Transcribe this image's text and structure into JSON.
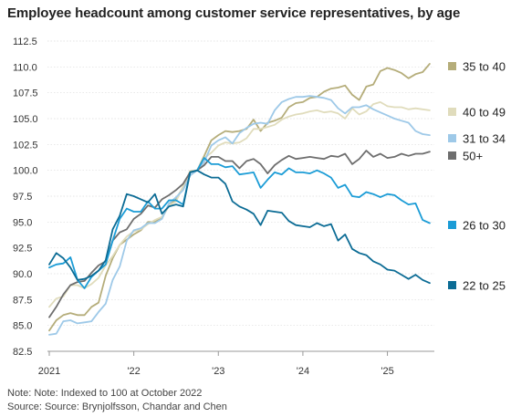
{
  "chart_data": {
    "type": "line",
    "title": "Employee headcount among customer service representatives, by age",
    "xlabel": "",
    "ylabel": "",
    "ylim": [
      82.5,
      112.5
    ],
    "yticks": [
      "112.5",
      "110.0",
      "107.5",
      "105.0",
      "102.5",
      "100.0",
      "97.5",
      "95.0",
      "92.5",
      "90.0",
      "87.5",
      "85.0",
      "82.5"
    ],
    "xticks": [
      {
        "label": "2021",
        "month": 0
      },
      {
        "label": "'22",
        "month": 12
      },
      {
        "label": "'23",
        "month": 24
      },
      {
        "label": "'24",
        "month": 36
      },
      {
        "label": "'25",
        "month": 48
      }
    ],
    "x_start": "2021-01",
    "x_end": "2025-07",
    "grid": "horizontal",
    "legend_position": "right",
    "note": "Note: Note: Indexed to 100 at October 2022",
    "source": "Source: Source: Brynjolfsson, Chandar and Chen",
    "series": [
      {
        "name": "35 to 40",
        "color": "#b5ad7a",
        "values": [
          84.5,
          85.5,
          86.0,
          86.2,
          86.0,
          86.0,
          86.8,
          87.2,
          89.8,
          91.5,
          92.8,
          93.3,
          93.8,
          94.2,
          95.0,
          95.0,
          95.4,
          96.6,
          97.2,
          98.4,
          99.9,
          100.0,
          101.4,
          102.9,
          103.4,
          103.8,
          103.7,
          103.8,
          104.0,
          104.9,
          103.8,
          104.6,
          104.8,
          105.1,
          106.1,
          106.5,
          106.6,
          107.0,
          107.1,
          107.6,
          107.9,
          108.0,
          108.2,
          107.3,
          106.8,
          108.1,
          108.3,
          109.6,
          109.9,
          109.7,
          109.4,
          108.9,
          109.3,
          109.5,
          110.3
        ]
      },
      {
        "name": "40 to 49",
        "color": "#e0dcbc",
        "values": [
          86.8,
          87.6,
          87.8,
          88.9,
          88.9,
          88.6,
          89.0,
          89.6,
          90.8,
          91.7,
          92.8,
          93.6,
          94.1,
          94.3,
          94.8,
          95.2,
          95.5,
          96.6,
          97.0,
          98.5,
          99.8,
          100.0,
          101.2,
          101.7,
          102.4,
          102.7,
          102.6,
          102.7,
          103.1,
          104.0,
          104.0,
          104.2,
          104.4,
          104.9,
          105.2,
          105.4,
          105.5,
          105.7,
          105.8,
          105.6,
          105.7,
          105.5,
          105.0,
          106.0,
          105.4,
          105.7,
          106.4,
          106.6,
          106.2,
          106.1,
          106.1,
          105.9,
          106.0,
          105.9,
          105.8
        ]
      },
      {
        "name": "31 to 34",
        "color": "#9ec9e8",
        "values": [
          84.1,
          84.2,
          85.4,
          85.5,
          85.2,
          85.3,
          85.4,
          86.3,
          87.1,
          89.4,
          90.7,
          93.2,
          94.2,
          94.4,
          94.9,
          94.9,
          95.3,
          96.8,
          97.4,
          98.1,
          99.5,
          100.0,
          100.8,
          102.4,
          102.9,
          103.2,
          102.6,
          103.6,
          104.1,
          104.5,
          104.6,
          104.5,
          105.8,
          106.6,
          106.9,
          107.1,
          107.1,
          107.2,
          107.1,
          107.0,
          106.8,
          106.0,
          105.5,
          106.1,
          106.1,
          106.3,
          105.9,
          105.6,
          105.3,
          105.0,
          104.8,
          104.6,
          103.8,
          103.5,
          103.4
        ]
      },
      {
        "name": "50+",
        "color": "#6e6e6e",
        "values": [
          85.8,
          86.8,
          88.0,
          88.9,
          89.2,
          89.3,
          90.1,
          90.8,
          91.2,
          93.2,
          94.0,
          94.3,
          95.3,
          95.8,
          96.6,
          96.4,
          97.2,
          97.6,
          98.1,
          98.7,
          99.8,
          100.0,
          100.5,
          101.3,
          101.3,
          100.9,
          100.9,
          100.2,
          100.9,
          101.1,
          100.6,
          99.7,
          100.5,
          101.0,
          101.4,
          101.1,
          101.2,
          101.3,
          101.2,
          101.1,
          101.4,
          101.3,
          101.6,
          100.6,
          101.1,
          101.9,
          101.3,
          101.6,
          101.2,
          101.3,
          101.6,
          101.4,
          101.6,
          101.6,
          101.8
        ]
      },
      {
        "name": "26 to 30",
        "color": "#1b9cd6",
        "values": [
          90.6,
          90.9,
          91.0,
          91.6,
          89.4,
          88.6,
          89.7,
          90.3,
          90.9,
          93.2,
          95.3,
          96.3,
          96.0,
          96.0,
          97.0,
          96.3,
          96.3,
          97.1,
          97.1,
          96.7,
          99.8,
          100.0,
          101.2,
          100.6,
          100.6,
          100.3,
          100.4,
          99.6,
          99.7,
          99.8,
          98.3,
          99.1,
          99.8,
          99.6,
          100.2,
          99.8,
          99.8,
          99.7,
          100.0,
          99.7,
          99.3,
          98.3,
          98.6,
          97.5,
          97.4,
          97.9,
          97.7,
          97.4,
          97.7,
          97.6,
          97.1,
          96.7,
          96.8,
          95.2,
          94.9
        ]
      },
      {
        "name": "22 to 25",
        "color": "#0c6c95",
        "values": [
          90.9,
          92.0,
          91.5,
          90.6,
          89.4,
          89.5,
          89.8,
          90.3,
          91.3,
          94.3,
          95.6,
          97.7,
          97.5,
          97.2,
          96.9,
          97.7,
          95.8,
          96.5,
          96.7,
          96.5,
          99.8,
          100.0,
          99.6,
          99.3,
          99.3,
          98.7,
          97.0,
          96.5,
          96.2,
          95.8,
          94.7,
          96.1,
          96.0,
          95.9,
          95.1,
          94.7,
          94.6,
          94.5,
          94.9,
          94.6,
          94.8,
          93.2,
          93.8,
          92.4,
          92.0,
          91.8,
          91.2,
          90.9,
          90.4,
          90.3,
          89.9,
          89.5,
          89.9,
          89.4,
          89.1
        ]
      }
    ]
  }
}
